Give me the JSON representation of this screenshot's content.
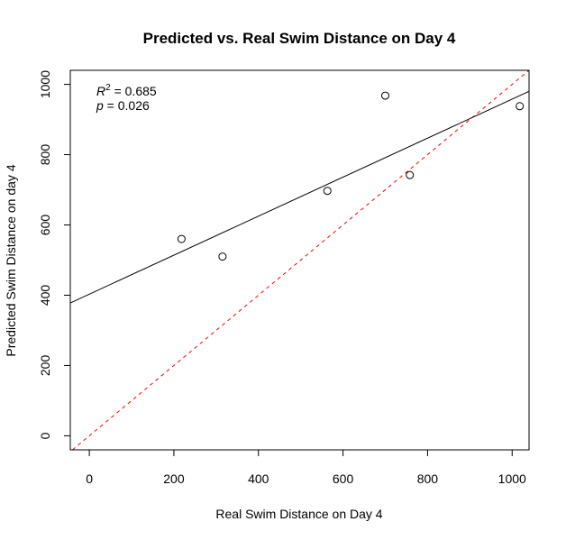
{
  "chart_data": {
    "type": "scatter",
    "title": "Predicted vs. Real Swim Distance on Day 4",
    "xlabel": "Real Swim Distance on Day 4",
    "ylabel": "Predicted Swim Distance on day 4",
    "xlim": [
      -45,
      1040
    ],
    "ylim": [
      -40,
      1040
    ],
    "xticks": [
      0,
      200,
      400,
      600,
      800,
      1000
    ],
    "yticks": [
      0,
      200,
      400,
      600,
      800,
      1000
    ],
    "points": [
      {
        "x": 218,
        "y": 560
      },
      {
        "x": 315,
        "y": 510
      },
      {
        "x": 563,
        "y": 697
      },
      {
        "x": 700,
        "y": 968
      },
      {
        "x": 758,
        "y": 742
      },
      {
        "x": 1018,
        "y": 938
      }
    ],
    "fit_line": {
      "intercept": 403,
      "slope": 0.555,
      "color": "#000000",
      "style": "solid"
    },
    "identity_line": {
      "intercept": 0,
      "slope": 1,
      "color": "#ff0000",
      "style": "dashed"
    },
    "annotations": {
      "r2_symbol": "R",
      "r2_exponent": "2",
      "r2_value": " = 0.685",
      "p_symbol": "p",
      "p_value": " = 0.026"
    },
    "grid": false,
    "legend": "none"
  }
}
